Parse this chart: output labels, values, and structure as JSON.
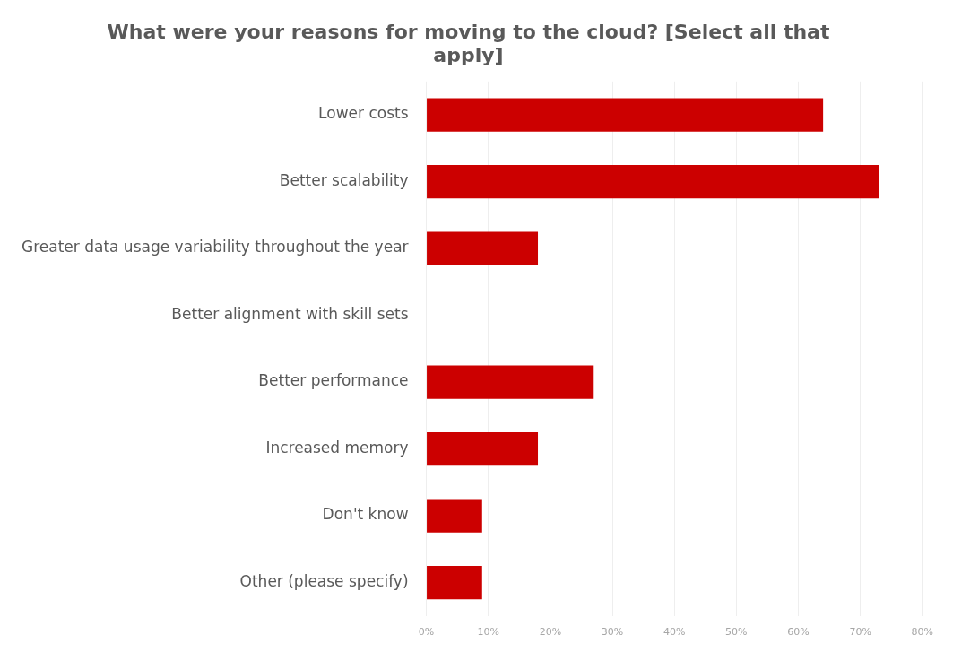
{
  "chart_data": {
    "type": "bar",
    "orientation": "horizontal",
    "title": "What were your reasons for moving to the cloud? [Select all that apply]",
    "categories": [
      "Lower costs",
      "Better scalability",
      "Greater data usage variability throughout the year",
      "Better alignment with skill sets",
      "Better performance",
      "Increased memory",
      "Don't know",
      "Other (please specify)"
    ],
    "values": [
      64,
      73,
      18,
      0,
      27,
      18,
      9,
      9
    ],
    "color": "#cc0000",
    "xlim": [
      0,
      80
    ],
    "xticks": [
      {
        "value": 0,
        "label": "0%"
      },
      {
        "value": 10,
        "label": "10%"
      },
      {
        "value": 20,
        "label": "20%"
      },
      {
        "value": 30,
        "label": "30%"
      },
      {
        "value": 40,
        "label": "40%"
      },
      {
        "value": 50,
        "label": "50%"
      },
      {
        "value": 60,
        "label": "60%"
      },
      {
        "value": 70,
        "label": "70%"
      },
      {
        "value": 80,
        "label": "80%"
      }
    ],
    "grid": "x",
    "legend": false
  }
}
